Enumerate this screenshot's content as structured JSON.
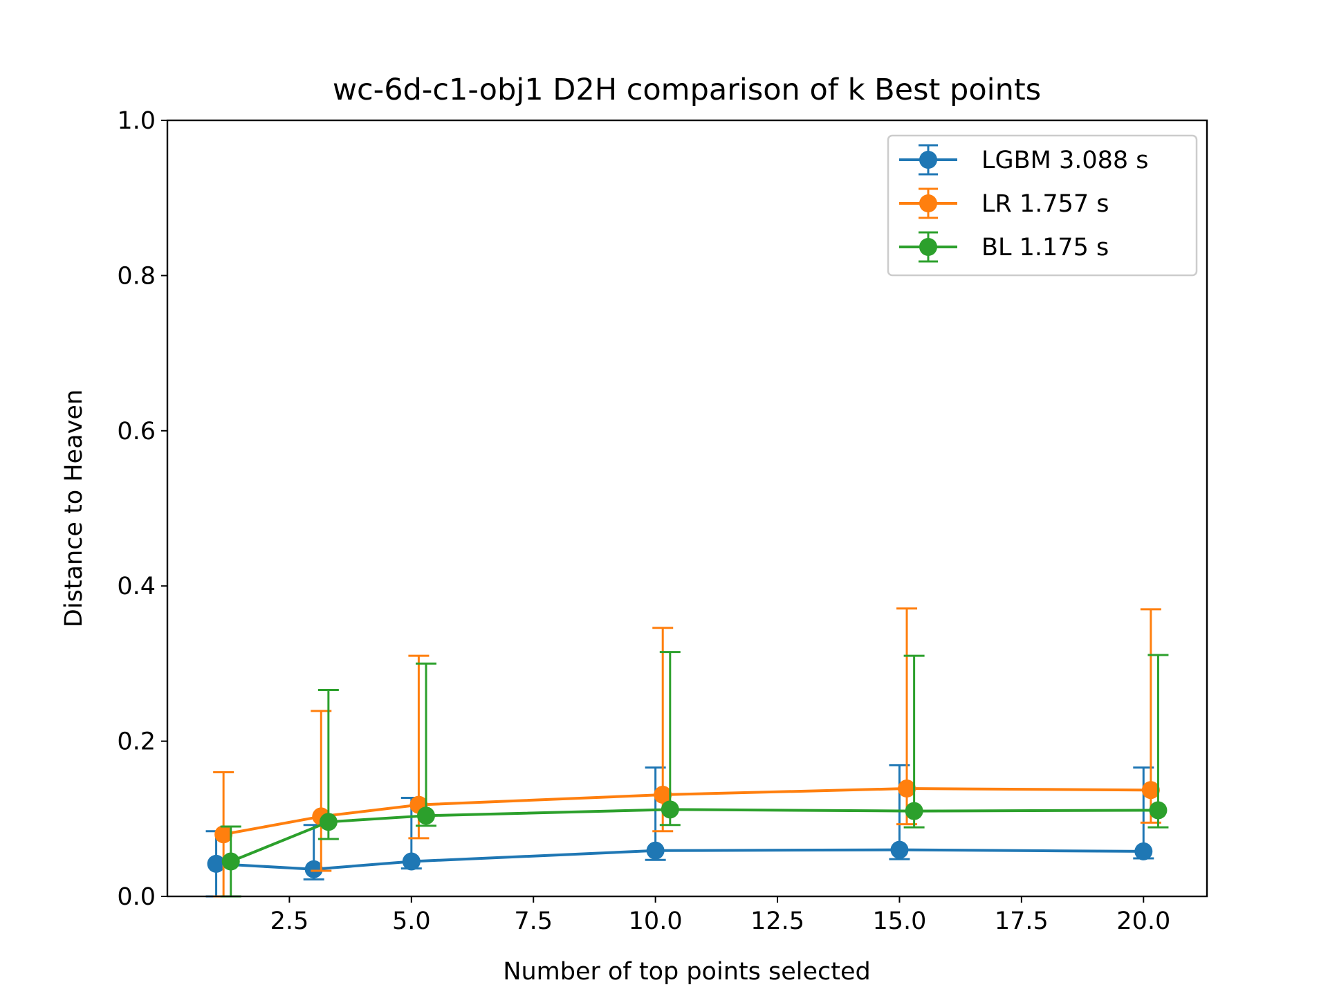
{
  "chart_data": {
    "type": "line",
    "title": "wc-6d-c1-obj1 D2H comparison of k Best points",
    "xlabel": "Number of top points selected",
    "ylabel": "Distance to Heaven",
    "xlim": [
      0,
      21.3
    ],
    "ylim": [
      0,
      1.0
    ],
    "xticks": [
      "2.5",
      "5.0",
      "7.5",
      "10.0",
      "12.5",
      "15.0",
      "17.5",
      "20.0"
    ],
    "xtick_values": [
      2.5,
      5.0,
      7.5,
      10.0,
      12.5,
      15.0,
      17.5,
      20.0
    ],
    "yticks": [
      "0.0",
      "0.2",
      "0.4",
      "0.6",
      "0.8",
      "1.0"
    ],
    "ytick_values": [
      0.0,
      0.2,
      0.4,
      0.6,
      0.8,
      1.0
    ],
    "grid": false,
    "legend_position": "top-right",
    "series": [
      {
        "name": "LGBM 3.088 s",
        "color": "#1f77b4",
        "x": [
          1,
          3,
          5,
          10,
          15,
          20
        ],
        "y": [
          0.042,
          0.035,
          0.045,
          0.059,
          0.06,
          0.058
        ],
        "err_low": [
          0.042,
          0.013,
          0.009,
          0.012,
          0.012,
          0.009
        ],
        "err_high": [
          0.042,
          0.057,
          0.082,
          0.107,
          0.109,
          0.108
        ]
      },
      {
        "name": "LR 1.757 s",
        "color": "#ff7f0e",
        "x": [
          1.15,
          3.15,
          5.15,
          10.15,
          15.15,
          20.15
        ],
        "y": [
          0.08,
          0.103,
          0.118,
          0.131,
          0.139,
          0.137
        ],
        "err_low": [
          0.08,
          0.07,
          0.043,
          0.047,
          0.046,
          0.042
        ],
        "err_high": [
          0.08,
          0.136,
          0.192,
          0.215,
          0.232,
          0.233
        ]
      },
      {
        "name": "BL 1.175 s",
        "color": "#2ca02c",
        "x": [
          1.3,
          3.3,
          5.3,
          10.3,
          15.3,
          20.3
        ],
        "y": [
          0.045,
          0.096,
          0.104,
          0.112,
          0.11,
          0.111
        ],
        "err_low": [
          0.045,
          0.022,
          0.013,
          0.02,
          0.021,
          0.022
        ],
        "err_high": [
          0.045,
          0.17,
          0.196,
          0.203,
          0.2,
          0.2
        ]
      }
    ]
  }
}
